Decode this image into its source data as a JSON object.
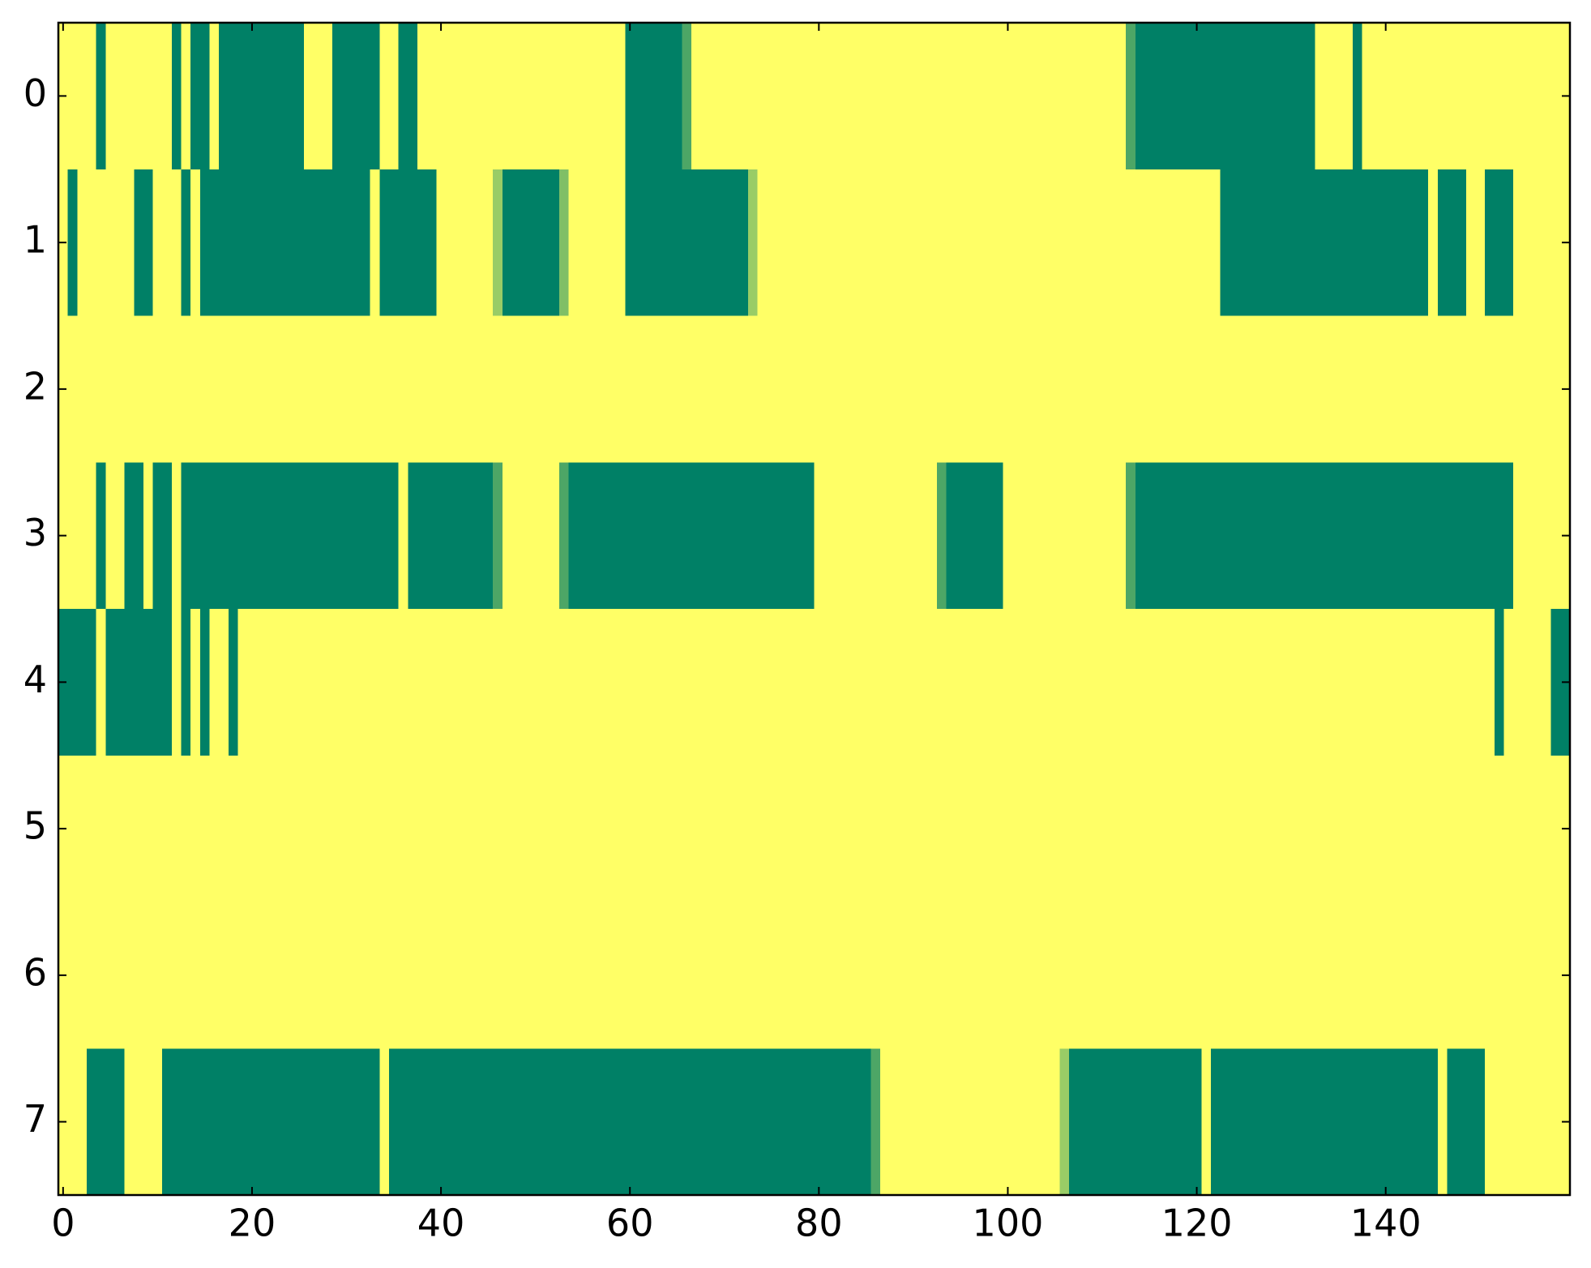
{
  "chart_data": {
    "type": "heatmap",
    "colormap": "summer",
    "clim": [
      0,
      1
    ],
    "xlim": [
      -0.5,
      159.5
    ],
    "ylim": [
      7.5,
      -0.5
    ],
    "xticks": [
      0,
      20,
      40,
      60,
      80,
      100,
      120,
      140
    ],
    "yticks": [
      0,
      1,
      2,
      3,
      4,
      5,
      6,
      7
    ],
    "values": [
      [
        1,
        1,
        1,
        1,
        0,
        1,
        1,
        1,
        1,
        1,
        1,
        1,
        0,
        1,
        0,
        0,
        1,
        0,
        0,
        0,
        0,
        0,
        0,
        0,
        0,
        0,
        1,
        1,
        1,
        0,
        0,
        0,
        0,
        0,
        1,
        1,
        0,
        0,
        1,
        1,
        1,
        1,
        1,
        1,
        1,
        1,
        1,
        1,
        1,
        1,
        1,
        1,
        1,
        1,
        1,
        1,
        1,
        1,
        1,
        1,
        0,
        0,
        0,
        0,
        0,
        0,
        0.3,
        1,
        1,
        1,
        1,
        1,
        1,
        1,
        1,
        1,
        1,
        1,
        1,
        1,
        1,
        1,
        1,
        1,
        1,
        1,
        1,
        1,
        1,
        1,
        1,
        1,
        1,
        1,
        1,
        1,
        1,
        1,
        1,
        1,
        1,
        1,
        1,
        1,
        1,
        1,
        1,
        1,
        1,
        1,
        1,
        1,
        1,
        0.3,
        0,
        0,
        0,
        0,
        0,
        0,
        0,
        0,
        0,
        0,
        0,
        0,
        0,
        0,
        0,
        0,
        0,
        0,
        0,
        1,
        1,
        1,
        1,
        0,
        1,
        1,
        1,
        1,
        1,
        1,
        1,
        1,
        1,
        1,
        1,
        1,
        1,
        1,
        1,
        1,
        1,
        1,
        1,
        1,
        1,
        1
      ],
      [
        1,
        0,
        1,
        1,
        1,
        1,
        1,
        1,
        0,
        0,
        1,
        1,
        1,
        0,
        1,
        0,
        0,
        0,
        0,
        0,
        0,
        0,
        0,
        0,
        0,
        0,
        0,
        0,
        0,
        0,
        0,
        0,
        0,
        1,
        0,
        0,
        0,
        0,
        0,
        0,
        1,
        1,
        1,
        1,
        1,
        1,
        0.6,
        0,
        0,
        0,
        0,
        0,
        0,
        0.5,
        1,
        1,
        1,
        1,
        1,
        1,
        0,
        0,
        0,
        0,
        0,
        0,
        0,
        0,
        0,
        0,
        0,
        0,
        0,
        0.6,
        1,
        1,
        1,
        1,
        1,
        1,
        1,
        1,
        1,
        1,
        1,
        1,
        1,
        1,
        1,
        1,
        1,
        1,
        1,
        1,
        1,
        1,
        1,
        1,
        1,
        1,
        1,
        1,
        1,
        1,
        1,
        1,
        1,
        1,
        1,
        1,
        1,
        1,
        1,
        1,
        1,
        1,
        1,
        1,
        1,
        1,
        1,
        1,
        1,
        0,
        0,
        0,
        0,
        0,
        0,
        0,
        0,
        0,
        0,
        0,
        0,
        0,
        0,
        0,
        0,
        0,
        0,
        0,
        0,
        0,
        0,
        1,
        0,
        0,
        0,
        1,
        1,
        0,
        0,
        0,
        1,
        1,
        1,
        1,
        1,
        1
      ],
      [
        1,
        1,
        1,
        1,
        1,
        1,
        1,
        1,
        1,
        1,
        1,
        1,
        1,
        1,
        1,
        1,
        1,
        1,
        1,
        1,
        1,
        1,
        1,
        1,
        1,
        1,
        1,
        1,
        1,
        1,
        1,
        1,
        1,
        1,
        1,
        1,
        1,
        1,
        1,
        1,
        1,
        1,
        1,
        1,
        1,
        1,
        1,
        1,
        1,
        1,
        1,
        1,
        1,
        1,
        1,
        1,
        1,
        1,
        1,
        1,
        1,
        1,
        1,
        1,
        1,
        1,
        1,
        1,
        1,
        1,
        1,
        1,
        1,
        1,
        1,
        1,
        1,
        1,
        1,
        1,
        1,
        1,
        1,
        1,
        1,
        1,
        1,
        1,
        1,
        1,
        1,
        1,
        1,
        1,
        1,
        1,
        1,
        1,
        1,
        1,
        1,
        1,
        1,
        1,
        1,
        1,
        1,
        1,
        1,
        1,
        1,
        1,
        1,
        1,
        1,
        1,
        1,
        1,
        1,
        1,
        1,
        1,
        1,
        1,
        1,
        1,
        1,
        1,
        1,
        1,
        1,
        1,
        1,
        1,
        1,
        1,
        1,
        1,
        1,
        1,
        1,
        1,
        1,
        1,
        1,
        1,
        1,
        1,
        1,
        1,
        1,
        1,
        1,
        1,
        1,
        1,
        1,
        1,
        1,
        1
      ],
      [
        1,
        1,
        1,
        1,
        0,
        1,
        1,
        0,
        0,
        1,
        0,
        0,
        1,
        0,
        0,
        0,
        0,
        0,
        0,
        0,
        0,
        0,
        0,
        0,
        0,
        0,
        0,
        0,
        0,
        0,
        0,
        0,
        0,
        0,
        0,
        0,
        1,
        0,
        0,
        0,
        0,
        0,
        0,
        0,
        0,
        0,
        0.3,
        1,
        1,
        1,
        1,
        1,
        1,
        0.3,
        0,
        0,
        0,
        0,
        0,
        0,
        0,
        0,
        0,
        0,
        0,
        0,
        0,
        0,
        0,
        0,
        0,
        0,
        0,
        0,
        0,
        0,
        0,
        0,
        0,
        0,
        1,
        1,
        1,
        1,
        1,
        1,
        1,
        1,
        1,
        1,
        1,
        1,
        1,
        0.3,
        0,
        0,
        0,
        0,
        0,
        0,
        1,
        1,
        1,
        1,
        1,
        1,
        1,
        1,
        1,
        1,
        1,
        1,
        1,
        0.3,
        0,
        0,
        0,
        0,
        0,
        0,
        0,
        0,
        0,
        0,
        0,
        0,
        0,
        0,
        0,
        0,
        0,
        0,
        0,
        0,
        0,
        0,
        0,
        0,
        0,
        0,
        0,
        0,
        0,
        0,
        0,
        0,
        0,
        0,
        0,
        0,
        0,
        0,
        0,
        0,
        1,
        1,
        1,
        1,
        1,
        1
      ],
      [
        0,
        0,
        0,
        0,
        1,
        0,
        0,
        0,
        0,
        0,
        0,
        0,
        1,
        0,
        1,
        0,
        1,
        1,
        0,
        1,
        1,
        1,
        1,
        1,
        1,
        1,
        1,
        1,
        1,
        1,
        1,
        1,
        1,
        1,
        1,
        1,
        1,
        1,
        1,
        1,
        1,
        1,
        1,
        1,
        1,
        1,
        1,
        1,
        1,
        1,
        1,
        1,
        1,
        1,
        1,
        1,
        1,
        1,
        1,
        1,
        1,
        1,
        1,
        1,
        1,
        1,
        1,
        1,
        1,
        1,
        1,
        1,
        1,
        1,
        1,
        1,
        1,
        1,
        1,
        1,
        1,
        1,
        1,
        1,
        1,
        1,
        1,
        1,
        1,
        1,
        1,
        1,
        1,
        1,
        1,
        1,
        1,
        1,
        1,
        1,
        1,
        1,
        1,
        1,
        1,
        1,
        1,
        1,
        1,
        1,
        1,
        1,
        1,
        1,
        1,
        1,
        1,
        1,
        1,
        1,
        1,
        1,
        1,
        1,
        1,
        1,
        1,
        1,
        1,
        1,
        1,
        1,
        1,
        1,
        1,
        1,
        1,
        1,
        1,
        1,
        1,
        1,
        1,
        1,
        1,
        1,
        1,
        1,
        1,
        1,
        1,
        1,
        0,
        1,
        1,
        1,
        1,
        1,
        0,
        0
      ],
      [
        1,
        1,
        1,
        1,
        1,
        1,
        1,
        1,
        1,
        1,
        1,
        1,
        1,
        1,
        1,
        1,
        1,
        1,
        1,
        1,
        1,
        1,
        1,
        1,
        1,
        1,
        1,
        1,
        1,
        1,
        1,
        1,
        1,
        1,
        1,
        1,
        1,
        1,
        1,
        1,
        1,
        1,
        1,
        1,
        1,
        1,
        1,
        1,
        1,
        1,
        1,
        1,
        1,
        1,
        1,
        1,
        1,
        1,
        1,
        1,
        1,
        1,
        1,
        1,
        1,
        1,
        1,
        1,
        1,
        1,
        1,
        1,
        1,
        1,
        1,
        1,
        1,
        1,
        1,
        1,
        1,
        1,
        1,
        1,
        1,
        1,
        1,
        1,
        1,
        1,
        1,
        1,
        1,
        1,
        1,
        1,
        1,
        1,
        1,
        1,
        1,
        1,
        1,
        1,
        1,
        1,
        1,
        1,
        1,
        1,
        1,
        1,
        1,
        1,
        1,
        1,
        1,
        1,
        1,
        1,
        1,
        1,
        1,
        1,
        1,
        1,
        1,
        1,
        1,
        1,
        1,
        1,
        1,
        1,
        1,
        1,
        1,
        1,
        1,
        1,
        1,
        1,
        1,
        1,
        1,
        1,
        1,
        1,
        1,
        1,
        1,
        1,
        1,
        1,
        1,
        1,
        1,
        1,
        1,
        1
      ],
      [
        1,
        1,
        1,
        1,
        1,
        1,
        1,
        1,
        1,
        1,
        1,
        1,
        1,
        1,
        1,
        1,
        1,
        1,
        1,
        1,
        1,
        1,
        1,
        1,
        1,
        1,
        1,
        1,
        1,
        1,
        1,
        1,
        1,
        1,
        1,
        1,
        1,
        1,
        1,
        1,
        1,
        1,
        1,
        1,
        1,
        1,
        1,
        1,
        1,
        1,
        1,
        1,
        1,
        1,
        1,
        1,
        1,
        1,
        1,
        1,
        1,
        1,
        1,
        1,
        1,
        1,
        1,
        1,
        1,
        1,
        1,
        1,
        1,
        1,
        1,
        1,
        1,
        1,
        1,
        1,
        1,
        1,
        1,
        1,
        1,
        1,
        1,
        1,
        1,
        1,
        1,
        1,
        1,
        1,
        1,
        1,
        1,
        1,
        1,
        1,
        1,
        1,
        1,
        1,
        1,
        1,
        1,
        1,
        1,
        1,
        1,
        1,
        1,
        1,
        1,
        1,
        1,
        1,
        1,
        1,
        1,
        1,
        1,
        1,
        1,
        1,
        1,
        1,
        1,
        1,
        1,
        1,
        1,
        1,
        1,
        1,
        1,
        1,
        1,
        1,
        1,
        1,
        1,
        1,
        1,
        1,
        1,
        1,
        1,
        1,
        1,
        1,
        1,
        1,
        1,
        1,
        1,
        1,
        1,
        1
      ],
      [
        1,
        1,
        1,
        0,
        0,
        0,
        0,
        1,
        1,
        1,
        1,
        0,
        0,
        0,
        0,
        0,
        0,
        0,
        0,
        0,
        0,
        0,
        0,
        0,
        0,
        0,
        0,
        0,
        0,
        0,
        0,
        0,
        0,
        0,
        1,
        0,
        0,
        0,
        0,
        0,
        0,
        0,
        0,
        0,
        0,
        0,
        0,
        0,
        0,
        0,
        0,
        0,
        0,
        0,
        0,
        0,
        0,
        0,
        0,
        0,
        0,
        0,
        0,
        0,
        0,
        0,
        0,
        0,
        0,
        0,
        0,
        0,
        0,
        0,
        0,
        0,
        0,
        0,
        0,
        0,
        0,
        0,
        0,
        0,
        0,
        0,
        0.3,
        1,
        1,
        1,
        1,
        1,
        1,
        1,
        1,
        1,
        1,
        1,
        1,
        1,
        1,
        1,
        1,
        1,
        1,
        1,
        0.6,
        0,
        0,
        0,
        0,
        0,
        0,
        0,
        0,
        0,
        0,
        0,
        0,
        0,
        0,
        1,
        0,
        0,
        0,
        0,
        0,
        0,
        0,
        0,
        0,
        0,
        0,
        0,
        0,
        0,
        0,
        0,
        0,
        0,
        0,
        0,
        0,
        0,
        0,
        0,
        1,
        0,
        0,
        0,
        0,
        1,
        1,
        1,
        1,
        1,
        1,
        1,
        1,
        1
      ]
    ]
  }
}
